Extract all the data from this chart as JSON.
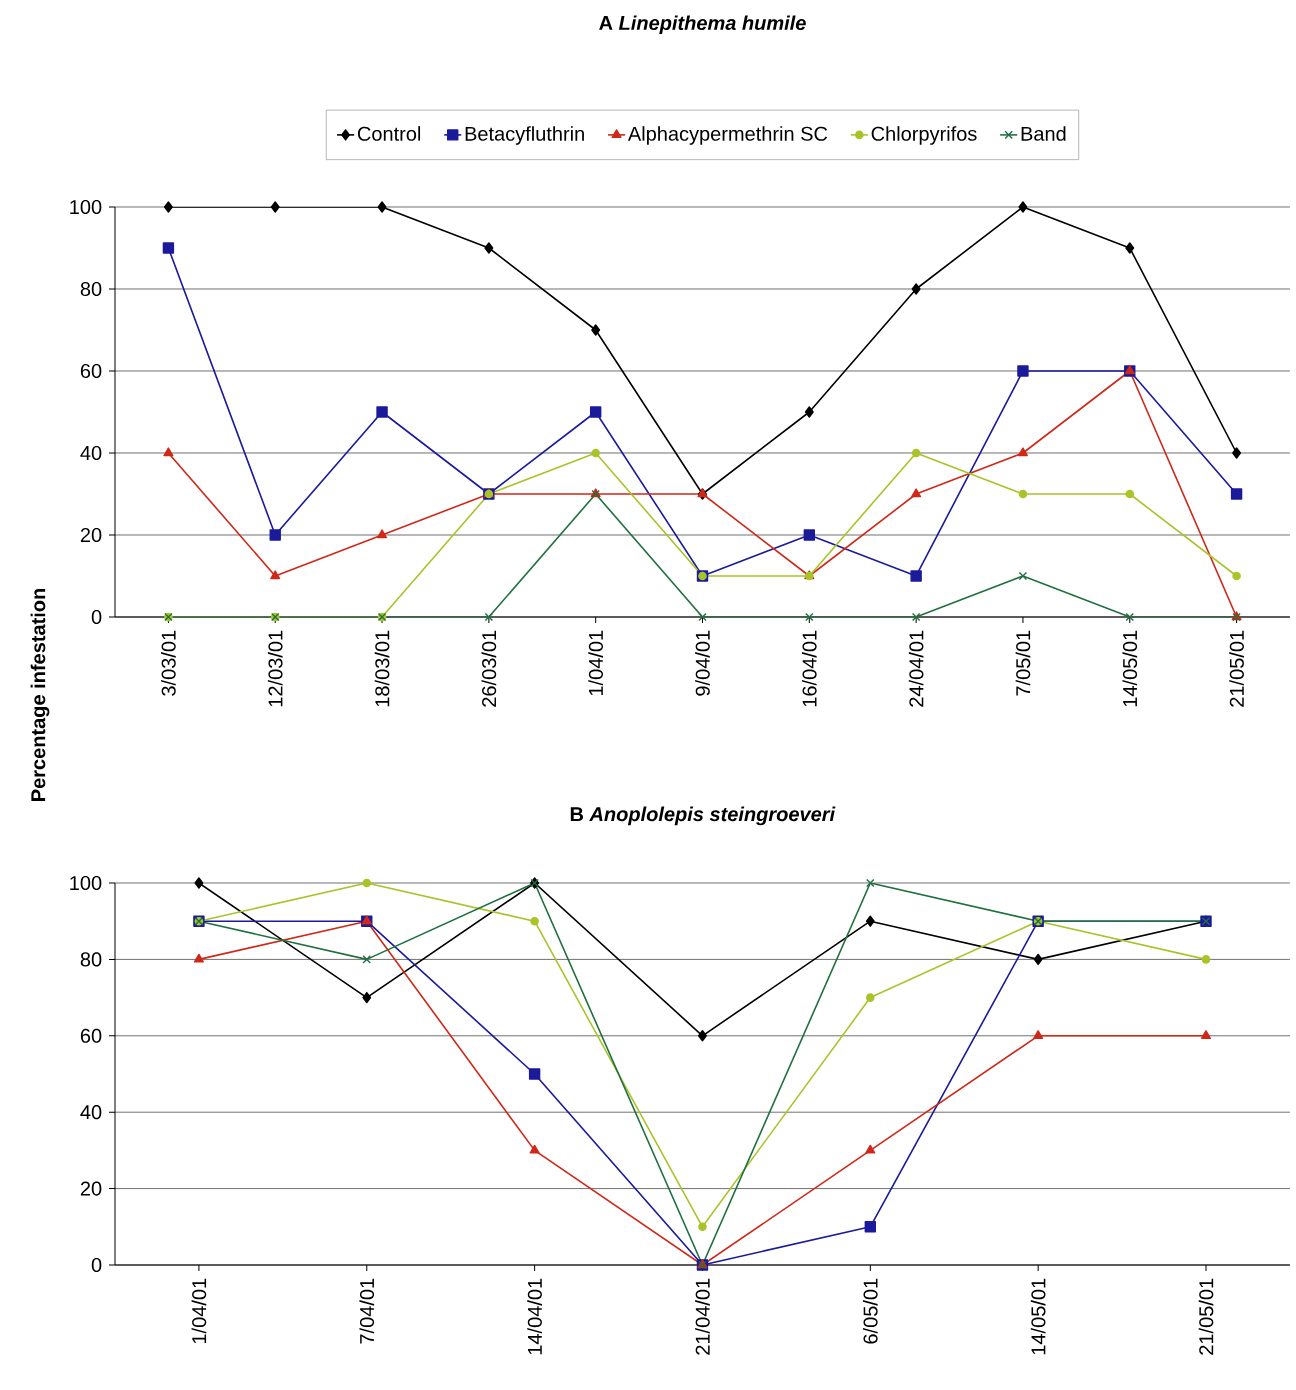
{
  "chart_data": [
    {
      "type": "line",
      "title": "A      *Linepithema humile*",
      "ylabel": "Percentage infestation",
      "categories": [
        "3/03/01",
        "12/03/01",
        "18/03/01",
        "26/03/01",
        "1/04/01",
        "9/04/01",
        "16/04/01",
        "24/04/01",
        "7/05/01",
        "14/05/01",
        "21/05/01"
      ],
      "series": [
        {
          "name": "Control",
          "color": "#000000",
          "marker": "diamond",
          "values": [
            100,
            100,
            100,
            90,
            70,
            30,
            50,
            80,
            100,
            90,
            40
          ]
        },
        {
          "name": "Betacyfluthrin",
          "color": "#1a1a9a",
          "marker": "square",
          "values": [
            90,
            20,
            50,
            30,
            50,
            10,
            20,
            10,
            60,
            60,
            30
          ]
        },
        {
          "name": "Alphacypermethrin SC",
          "color": "#d02818",
          "marker": "triangle",
          "values": [
            40,
            10,
            20,
            30,
            30,
            30,
            10,
            30,
            40,
            60,
            0
          ]
        },
        {
          "name": "Chlorpyrifos",
          "color": "#a8c428",
          "marker": "circle",
          "values": [
            0,
            0,
            0,
            30,
            40,
            10,
            10,
            40,
            30,
            30,
            10
          ]
        },
        {
          "name": "Band",
          "color": "#207040",
          "marker": "cross",
          "values": [
            0,
            0,
            0,
            0,
            30,
            0,
            0,
            0,
            10,
            0,
            0
          ]
        }
      ],
      "ylim": [
        0,
        100
      ],
      "yticks": [
        0,
        20,
        40,
        60,
        80,
        100
      ],
      "grid": "y",
      "legend": "top"
    },
    {
      "type": "line",
      "title": "B      *Anoplolepis steingroeveri*",
      "categories": [
        "1/04/01",
        "7/04/01",
        "14/04/01",
        "21/04/01",
        "6/05/01",
        "14/05/01",
        "21/05/01"
      ],
      "series": [
        {
          "color": "#000000",
          "marker": "diamond",
          "values": [
            100,
            70,
            100,
            60,
            90,
            80,
            90
          ]
        },
        {
          "color": "#1a1a9a",
          "marker": "square",
          "values": [
            90,
            90,
            50,
            0,
            10,
            90,
            90
          ]
        },
        {
          "color": "#d02818",
          "marker": "triangle",
          "values": [
            80,
            90,
            30,
            0,
            30,
            60,
            60
          ]
        },
        {
          "color": "#a8c428",
          "marker": "circle",
          "values": [
            90,
            100,
            90,
            10,
            70,
            90,
            80
          ]
        },
        {
          "color": "#207040",
          "marker": "cross",
          "values": [
            90,
            80,
            100,
            0,
            100,
            90,
            90
          ]
        }
      ],
      "ylim": [
        0,
        100
      ],
      "yticks": [
        0,
        20,
        40,
        60,
        80,
        100
      ],
      "grid": "y"
    }
  ]
}
